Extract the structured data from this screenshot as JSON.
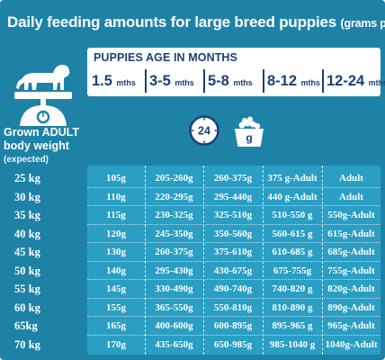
{
  "header": {
    "title_main": "Daily feeding amounts for large breed puppies",
    "title_sub": "(grams per day):"
  },
  "left": {
    "adult_label": "Grown ADULT body weight",
    "expected": "(expected)"
  },
  "months": {
    "title": "PUPPIES AGE IN MONTHS",
    "columns": [
      {
        "value": "1.5",
        "unit": "mths"
      },
      {
        "value": "3-5",
        "unit": "mths"
      },
      {
        "value": "5-8",
        "unit": "mths"
      },
      {
        "value": "8-12",
        "unit": "mths"
      },
      {
        "value": "12-24",
        "unit": "mths"
      }
    ]
  },
  "icons": {
    "clock_number": "24",
    "bowl_label": "g",
    "dog": "dog-icon",
    "scale": "scale-icon",
    "clock": "clock-icon",
    "bowl": "food-bowl-icon"
  },
  "colors": {
    "background": "#1e82a7",
    "table": "#2b9ec4",
    "header_text": "#1b3f78"
  },
  "table": {
    "rows": [
      {
        "weight": "25 kg",
        "values": [
          "105g",
          "205-260g",
          "260-375g",
          "375 g-Adult",
          "Adult"
        ]
      },
      {
        "weight": "30 kg",
        "values": [
          "110g",
          "220-295g",
          "295-440g",
          "440 g-Adult",
          "Adult"
        ]
      },
      {
        "weight": "35 kg",
        "values": [
          "115g",
          "230-325g",
          "325-510g",
          "510-550 g",
          "550g-Adult"
        ]
      },
      {
        "weight": "40 kg",
        "values": [
          "120g",
          "245-350g",
          "350-560g",
          "560-615 g",
          "615g-Adult"
        ]
      },
      {
        "weight": "45 kg",
        "values": [
          "130g",
          "260-375g",
          "375-610g",
          "610-685 g",
          "685g-Adult"
        ]
      },
      {
        "weight": "50 kg",
        "values": [
          "140g",
          "295-430g",
          "430-675g",
          "675-755g",
          "755g-Adult"
        ]
      },
      {
        "weight": "55 kg",
        "values": [
          "145g",
          "330-490g",
          "490-740g",
          "740-820 g",
          "820g-Adult"
        ]
      },
      {
        "weight": "60 kg",
        "values": [
          "155g",
          "365-550g",
          "550-810g",
          "810-890 g",
          "890g-Adult"
        ]
      },
      {
        "weight": "65kg",
        "values": [
          "165g",
          "400-600g",
          "600-895g",
          "895-965 g",
          "965g-Adult"
        ]
      },
      {
        "weight": "70 kg",
        "values": [
          "170g",
          "435-650g",
          "650-985g",
          "985-1040 g",
          "1040g-Adult"
        ]
      }
    ]
  }
}
